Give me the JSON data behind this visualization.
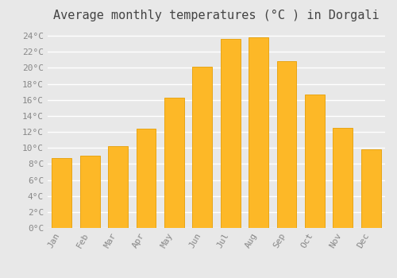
{
  "title": "Average monthly temperatures (°C ) in Dorgali",
  "months": [
    "Jan",
    "Feb",
    "Mar",
    "Apr",
    "May",
    "Jun",
    "Jul",
    "Aug",
    "Sep",
    "Oct",
    "Nov",
    "Dec"
  ],
  "values": [
    8.7,
    9.0,
    10.2,
    12.4,
    16.3,
    20.1,
    23.6,
    23.8,
    20.8,
    16.7,
    12.5,
    9.8
  ],
  "bar_color": "#FDB827",
  "bar_edge_color": "#E8A515",
  "background_color": "#E8E8E8",
  "grid_color": "#FFFFFF",
  "ylim": [
    0,
    25
  ],
  "yticks": [
    0,
    2,
    4,
    6,
    8,
    10,
    12,
    14,
    16,
    18,
    20,
    22,
    24
  ],
  "title_fontsize": 11,
  "tick_fontsize": 8,
  "tick_label_color": "#888888",
  "title_color": "#444444"
}
